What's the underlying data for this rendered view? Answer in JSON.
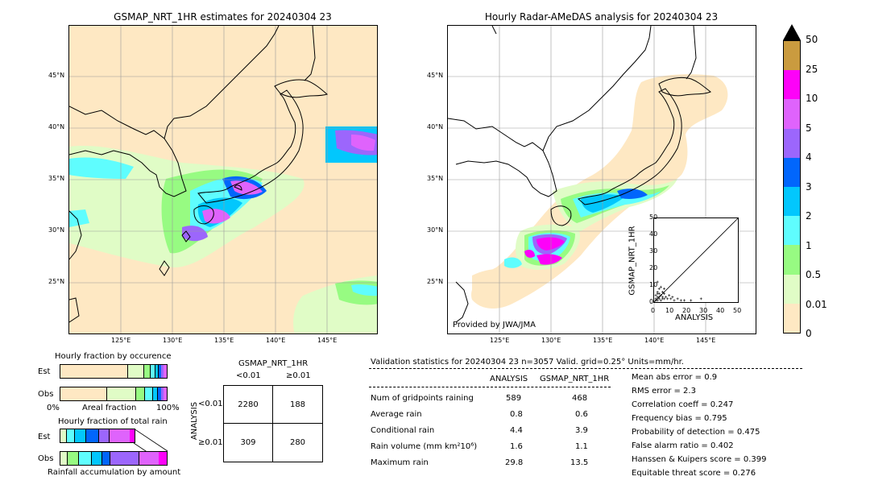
{
  "left_map": {
    "title": "GSMAP_NRT_1HR estimates for 20240304 23",
    "lat_ticks": [
      "45°N",
      "40°N",
      "35°N",
      "30°N",
      "25°N"
    ],
    "lon_ticks": [
      "125°E",
      "130°E",
      "135°E",
      "140°E",
      "145°E"
    ]
  },
  "right_map": {
    "title": "Hourly Radar-AMeDAS analysis for 20240304 23",
    "lat_ticks": [
      "45°N",
      "40°N",
      "35°N",
      "30°N",
      "25°N"
    ],
    "lon_ticks": [
      "125°E",
      "130°E",
      "135°E",
      "140°E",
      "145°E"
    ],
    "credit": "Provided by JWA/JMA"
  },
  "colorbar": {
    "levels": [
      "0",
      "0.01",
      "0.5",
      "1",
      "2",
      "3",
      "4",
      "5",
      "10",
      "25",
      "50"
    ],
    "colors": [
      "#fee8c3",
      "#e0fcc6",
      "#97fb82",
      "#5ffdfe",
      "#02c7fd",
      "#0166fc",
      "#9c66fc",
      "#df63fc",
      "#fd02f8",
      "#ca9b3f"
    ],
    "over_color": "#000000"
  },
  "scatter": {
    "xlabel": "ANALYSIS",
    "ylabel": "GSMAP_NRT_1HR",
    "ticks": [
      "0",
      "10",
      "20",
      "30",
      "40",
      "50"
    ]
  },
  "fraction_charts": {
    "occurrence_title": "Hourly fraction by occurence",
    "total_title": "Hourly fraction of total rain",
    "est_label": "Est",
    "obs_label": "Obs",
    "axis_left": "0%",
    "axis_mid": "Areal fraction",
    "axis_right": "100%",
    "footer": "Rainfall accumulation by amount"
  },
  "contingency": {
    "title": "GSMAP_NRT_1HR",
    "col_lt": "<0.01",
    "col_ge": "≥0.01",
    "row_axis": "ANALYSIS",
    "row_lt": "<0.01",
    "row_ge": "≥0.01",
    "cells": [
      "2280",
      "188",
      "309",
      "280"
    ]
  },
  "validation": {
    "header": "Validation statistics for 20240304 23  n=3057 Valid. grid=0.25° Units=mm/hr.",
    "col_analysis": "ANALYSIS",
    "col_gsmap": "GSMAP_NRT_1HR",
    "rows": [
      {
        "label": "Num of gridpoints raining",
        "analysis": "589",
        "gsmap": "468"
      },
      {
        "label": "Average rain",
        "analysis": "0.8",
        "gsmap": "0.6"
      },
      {
        "label": "Conditional rain",
        "analysis": "4.4",
        "gsmap": "3.9"
      },
      {
        "label": "Rain volume (mm km²10⁶)",
        "analysis": "1.6",
        "gsmap": "1.1"
      },
      {
        "label": "Maximum rain",
        "analysis": "29.8",
        "gsmap": "13.5"
      }
    ],
    "scores": [
      "Mean abs error =    0.9",
      "RMS error =    2.3",
      "Correlation coeff =  0.247",
      "Frequency bias =  0.795",
      "Probability of detection =  0.475",
      "False alarm ratio =  0.402",
      "Hanssen & Kuipers score =  0.399",
      "Equitable threat score =  0.276"
    ]
  }
}
